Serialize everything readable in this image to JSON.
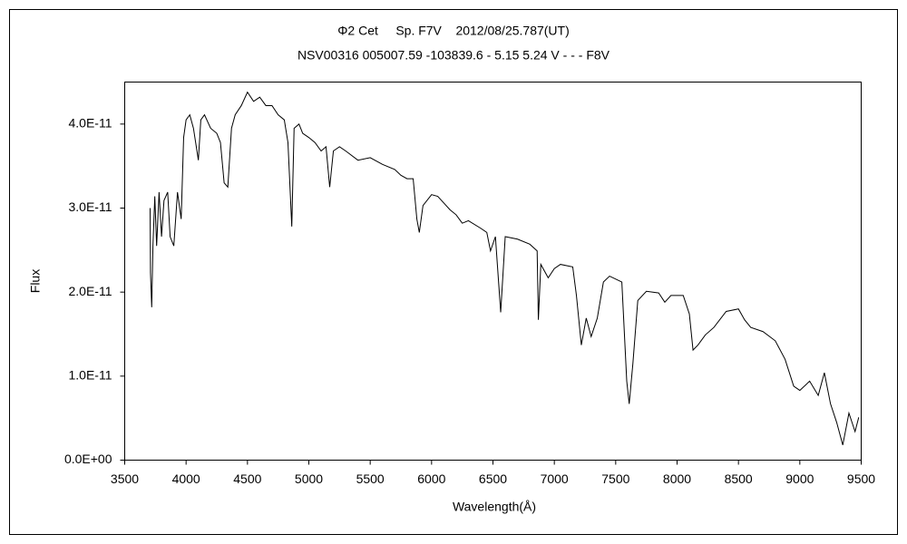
{
  "chart_data": {
    "type": "line",
    "title": "Φ2 Cet     Sp. F7V    2012/08/25.787(UT)",
    "subtitle": "NSV00316 005007.59 -103839.6 - 5.15 5.24 V - - - F8V",
    "xlabel": "Wavelength(Å)",
    "ylabel": "Flux",
    "color": "#000000",
    "grid": false,
    "xlim": [
      3500,
      9500
    ],
    "xticks": [
      3500,
      4000,
      4500,
      5000,
      5500,
      6000,
      6500,
      7000,
      7500,
      8000,
      8500,
      9000,
      9500
    ],
    "ylim": [
      0,
      4.5e-11
    ],
    "yticks": [
      {
        "value": 0,
        "label": "0.0E+00"
      },
      {
        "value": 1e-11,
        "label": "1.0E-11"
      },
      {
        "value": 2e-11,
        "label": "2.0E-11"
      },
      {
        "value": 3e-11,
        "label": "3.0E-11"
      },
      {
        "value": 4e-11,
        "label": "4.0E-11"
      }
    ],
    "x": [
      3707,
      3710,
      3720,
      3730,
      3745,
      3760,
      3780,
      3800,
      3820,
      3850,
      3870,
      3900,
      3930,
      3960,
      3980,
      4000,
      4030,
      4060,
      4100,
      4120,
      4150,
      4200,
      4250,
      4280,
      4310,
      4340,
      4370,
      4400,
      4450,
      4500,
      4550,
      4600,
      4650,
      4700,
      4750,
      4800,
      4830,
      4861,
      4880,
      4920,
      4950,
      5000,
      5050,
      5100,
      5140,
      5170,
      5200,
      5250,
      5300,
      5400,
      5500,
      5600,
      5700,
      5750,
      5800,
      5850,
      5880,
      5900,
      5930,
      6000,
      6050,
      6100,
      6150,
      6200,
      6250,
      6300,
      6400,
      6450,
      6480,
      6520,
      6563,
      6600,
      6700,
      6800,
      6860,
      6870,
      6890,
      6950,
      7000,
      7050,
      7150,
      7180,
      7220,
      7260,
      7300,
      7350,
      7400,
      7450,
      7550,
      7590,
      7610,
      7640,
      7680,
      7750,
      7850,
      7900,
      7950,
      8050,
      8100,
      8130,
      8170,
      8230,
      8300,
      8400,
      8500,
      8550,
      8600,
      8700,
      8800,
      8880,
      8950,
      9000,
      9080,
      9150,
      9200,
      9250,
      9300,
      9350,
      9400,
      9450,
      9480
    ],
    "values": [
      3e-11,
      2.23e-11,
      1.82e-11,
      2.55e-11,
      3.14e-11,
      2.55e-11,
      3.19e-11,
      2.66e-11,
      3.09e-11,
      3.19e-11,
      2.66e-11,
      2.55e-11,
      3.19e-11,
      2.87e-11,
      3.84e-11,
      4.05e-11,
      4.11e-11,
      3.95e-11,
      3.57e-11,
      4.05e-11,
      4.11e-11,
      3.95e-11,
      3.89e-11,
      3.78e-11,
      3.3e-11,
      3.25e-11,
      3.95e-11,
      4.11e-11,
      4.22e-11,
      4.38e-11,
      4.27e-11,
      4.32e-11,
      4.22e-11,
      4.22e-11,
      4.11e-11,
      4.05e-11,
      3.78e-11,
      2.78e-11,
      3.95e-11,
      4e-11,
      3.89e-11,
      3.84e-11,
      3.78e-11,
      3.68e-11,
      3.73e-11,
      3.25e-11,
      3.68e-11,
      3.73e-11,
      3.68e-11,
      3.57e-11,
      3.6e-11,
      3.52e-11,
      3.46e-11,
      3.39e-11,
      3.35e-11,
      3.35e-11,
      2.87e-11,
      2.71e-11,
      3.03e-11,
      3.16e-11,
      3.14e-11,
      3.06e-11,
      2.98e-11,
      2.92e-11,
      2.82e-11,
      2.85e-11,
      2.76e-11,
      2.71e-11,
      2.49e-11,
      2.66e-11,
      1.76e-11,
      2.66e-11,
      2.63e-11,
      2.57e-11,
      2.49e-11,
      1.67e-11,
      2.33e-11,
      2.17e-11,
      2.28e-11,
      2.33e-11,
      2.3e-11,
      1.96e-11,
      1.37e-11,
      1.69e-11,
      1.47e-11,
      1.69e-11,
      2.12e-11,
      2.19e-11,
      2.12e-11,
      9.4e-12,
      6.7e-12,
      1.15e-11,
      1.9e-11,
      2.01e-11,
      1.99e-11,
      1.88e-11,
      1.96e-11,
      1.96e-11,
      1.74e-11,
      1.31e-11,
      1.37e-11,
      1.49e-11,
      1.58e-11,
      1.77e-11,
      1.8e-11,
      1.67e-11,
      1.58e-11,
      1.53e-11,
      1.42e-11,
      1.2e-11,
      8.8e-12,
      8.3e-12,
      9.4e-12,
      7.7e-12,
      1.04e-11,
      6.7e-12,
      4.5e-12,
      1.8e-12,
      5.6e-12,
      3.4e-12,
      5.1e-12
    ]
  }
}
